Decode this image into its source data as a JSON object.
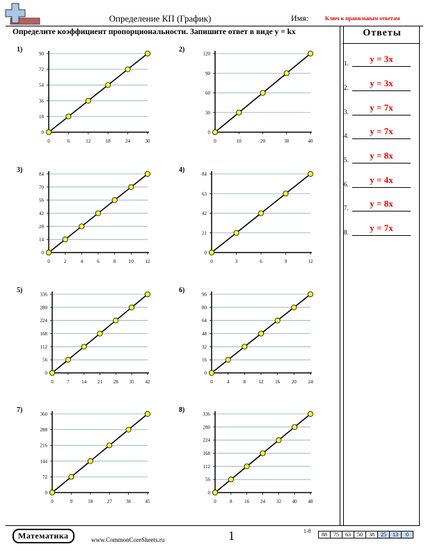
{
  "header": {
    "title": "Определение КП (График)",
    "name_label": "Имя:",
    "name_value": "Ключ к правильным ответам",
    "instructions": "Определите коэффициент пропорциональности. Запишите ответ в виде y = kx",
    "logo_icon": "plus-minus-icon"
  },
  "answers": {
    "title": "Ответы",
    "items": [
      {
        "num": "1.",
        "value": "y = 3x"
      },
      {
        "num": "2.",
        "value": "y = 3x"
      },
      {
        "num": "3.",
        "value": "y = 7x"
      },
      {
        "num": "4.",
        "value": "y = 7x"
      },
      {
        "num": "5.",
        "value": "y = 8x"
      },
      {
        "num": "6.",
        "value": "y = 4x"
      },
      {
        "num": "7.",
        "value": "y = 8x"
      },
      {
        "num": "8.",
        "value": "y = 7x"
      }
    ]
  },
  "footer": {
    "subject": "Математика",
    "site": "www.CommonCoreSheets.ru",
    "page": "1",
    "score_range": "1-8",
    "scores": [
      "88",
      "75",
      "63",
      "50",
      "38",
      "25",
      "13",
      "0"
    ]
  },
  "chart_data": [
    {
      "type": "line",
      "label": "1)",
      "x": [
        0,
        6,
        12,
        18,
        24,
        30
      ],
      "y": [
        0,
        18,
        36,
        54,
        72,
        90
      ],
      "xticks": [
        "0",
        "6",
        "12",
        "18",
        "24",
        "30"
      ],
      "yticks": [
        "0",
        "18",
        "36",
        "54",
        "72",
        "90"
      ],
      "xlim": [
        0,
        30
      ],
      "ylim": [
        0,
        90
      ],
      "grid": true
    },
    {
      "type": "line",
      "label": "2)",
      "x": [
        0,
        10,
        20,
        30,
        40
      ],
      "y": [
        0,
        30,
        60,
        90,
        120
      ],
      "xticks": [
        "0",
        "10",
        "20",
        "30",
        "40"
      ],
      "yticks": [
        "0",
        "30",
        "60",
        "90",
        "120"
      ],
      "xlim": [
        0,
        40
      ],
      "ylim": [
        0,
        120
      ],
      "grid": true
    },
    {
      "type": "line",
      "label": "3)",
      "x": [
        0,
        2,
        4,
        6,
        8,
        10,
        12
      ],
      "y": [
        0,
        14,
        28,
        42,
        56,
        70,
        84
      ],
      "xticks": [
        "0",
        "2",
        "4",
        "6",
        "8",
        "10",
        "12"
      ],
      "yticks": [
        "0",
        "14",
        "28",
        "42",
        "56",
        "70",
        "84"
      ],
      "xlim": [
        0,
        12
      ],
      "ylim": [
        0,
        84
      ],
      "grid": true
    },
    {
      "type": "line",
      "label": "4)",
      "x": [
        0,
        3,
        6,
        9,
        12
      ],
      "y": [
        0,
        21,
        42,
        63,
        84
      ],
      "xticks": [
        "0",
        "3",
        "6",
        "9",
        "12"
      ],
      "yticks": [
        "0",
        "21",
        "42",
        "63",
        "84"
      ],
      "xlim": [
        0,
        12
      ],
      "ylim": [
        0,
        84
      ],
      "grid": true
    },
    {
      "type": "line",
      "label": "5)",
      "x": [
        0,
        7,
        14,
        21,
        28,
        35,
        42
      ],
      "y": [
        0,
        56,
        112,
        168,
        224,
        280,
        336
      ],
      "xticks": [
        "0",
        "7",
        "14",
        "21",
        "28",
        "35",
        "42"
      ],
      "yticks": [
        "0",
        "56",
        "112",
        "168",
        "224",
        "280",
        "336"
      ],
      "xlim": [
        0,
        42
      ],
      "ylim": [
        0,
        336
      ],
      "grid": true
    },
    {
      "type": "line",
      "label": "6)",
      "x": [
        0,
        4,
        8,
        12,
        16,
        20,
        24
      ],
      "y": [
        0,
        16,
        32,
        48,
        64,
        80,
        96
      ],
      "xticks": [
        "0",
        "4",
        "8",
        "12",
        "16",
        "20",
        "24"
      ],
      "yticks": [
        "0",
        "16",
        "32",
        "48",
        "64",
        "80",
        "96"
      ],
      "xlim": [
        0,
        24
      ],
      "ylim": [
        0,
        96
      ],
      "grid": true
    },
    {
      "type": "line",
      "label": "7)",
      "x": [
        0,
        9,
        18,
        27,
        36,
        45
      ],
      "y": [
        0,
        72,
        144,
        216,
        288,
        360
      ],
      "xticks": [
        "0",
        "9",
        "18",
        "27",
        "36",
        "45"
      ],
      "yticks": [
        "0",
        "72",
        "144",
        "216",
        "288",
        "360"
      ],
      "xlim": [
        0,
        45
      ],
      "ylim": [
        0,
        360
      ],
      "grid": true
    },
    {
      "type": "line",
      "label": "8)",
      "x": [
        0,
        8,
        16,
        24,
        32,
        40,
        48
      ],
      "y": [
        0,
        56,
        112,
        168,
        224,
        280,
        336
      ],
      "xticks": [
        "0",
        "8",
        "16",
        "24",
        "32",
        "40",
        "48"
      ],
      "yticks": [
        "0",
        "56",
        "112",
        "168",
        "224",
        "280",
        "336"
      ],
      "xlim": [
        0,
        48
      ],
      "ylim": [
        0,
        336
      ],
      "grid": true
    }
  ]
}
